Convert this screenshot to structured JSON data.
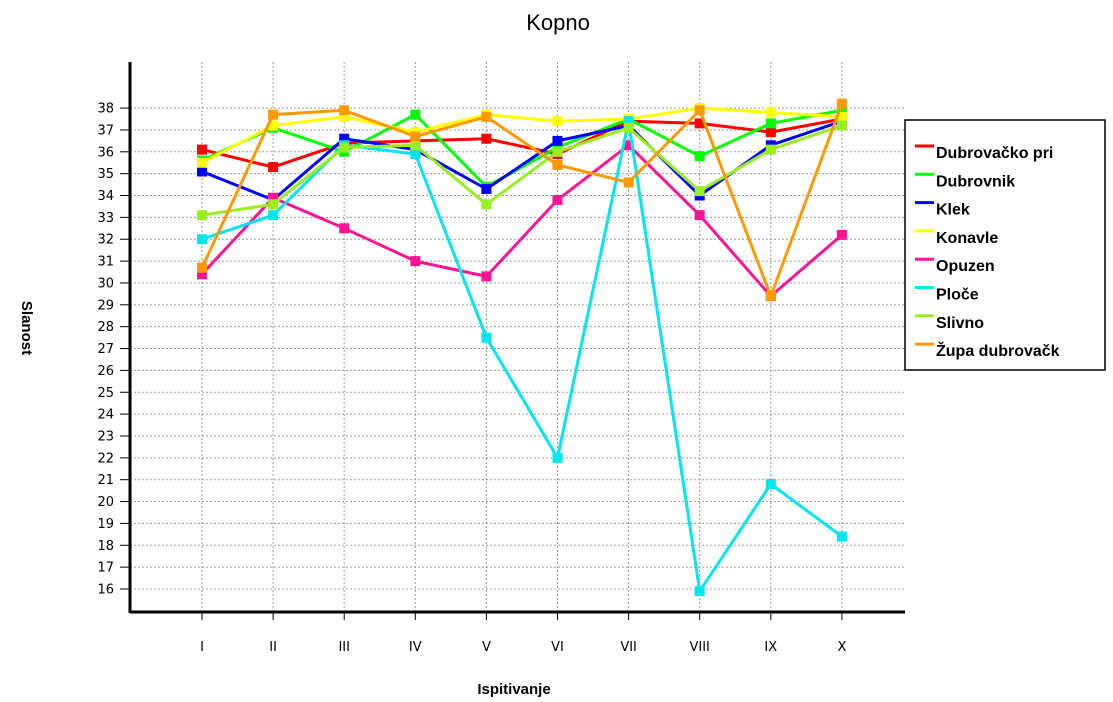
{
  "chart_data": {
    "type": "line",
    "title": "Kopno",
    "xlabel": "Ispitivanje",
    "ylabel": "Slanost",
    "categories": [
      "I",
      "II",
      "III",
      "IV",
      "V",
      "VI",
      "VII",
      "VIII",
      "IX",
      "X"
    ],
    "yticks": [
      "16",
      "17",
      "18",
      "19",
      "20",
      "21",
      "22",
      "23",
      "24",
      "25",
      "26",
      "27",
      "28",
      "29",
      "30",
      "31",
      "32",
      "33",
      "34",
      "35",
      "36",
      "37",
      "38"
    ],
    "ylim": [
      15.5,
      38.5
    ],
    "grid": true,
    "legend_position": "right",
    "series": [
      {
        "name": "Dubrovačko pri",
        "color": "#ff0000",
        "values": [
          36.1,
          35.3,
          36.4,
          36.5,
          36.6,
          35.9,
          37.4,
          37.3,
          36.9,
          37.5
        ]
      },
      {
        "name": "Dubrovnik",
        "color": "#00ff00",
        "values": [
          35.6,
          37.1,
          36.0,
          37.7,
          34.4,
          36.2,
          37.5,
          35.8,
          37.3,
          37.9
        ]
      },
      {
        "name": "Klek",
        "color": "#0000ff",
        "values": [
          35.1,
          33.8,
          36.6,
          36.1,
          34.3,
          36.5,
          37.2,
          34.0,
          36.3,
          37.4
        ]
      },
      {
        "name": "Konavle",
        "color": "#ffff00",
        "values": [
          35.5,
          37.2,
          37.6,
          36.9,
          37.7,
          37.4,
          37.5,
          38.0,
          37.8,
          37.6
        ]
      },
      {
        "name": "Opuzen",
        "color": "#ff1493",
        "values": [
          30.4,
          33.9,
          32.5,
          31.0,
          30.3,
          33.8,
          36.3,
          33.1,
          29.4,
          32.2
        ]
      },
      {
        "name": "Ploče",
        "color": "#00e5ee",
        "values": [
          32.0,
          33.1,
          36.3,
          35.9,
          27.5,
          22.0,
          37.4,
          15.9,
          20.8,
          18.4
        ]
      },
      {
        "name": "Slivno",
        "color": "#99ee22",
        "values": [
          33.1,
          33.6,
          36.2,
          36.3,
          33.6,
          36.0,
          37.1,
          34.2,
          36.1,
          37.2
        ]
      },
      {
        "name": "Župa dubrovačk",
        "color": "#ff9900",
        "values": [
          30.7,
          37.7,
          37.9,
          36.7,
          37.6,
          35.4,
          34.6,
          37.9,
          29.4,
          38.2
        ]
      }
    ]
  }
}
